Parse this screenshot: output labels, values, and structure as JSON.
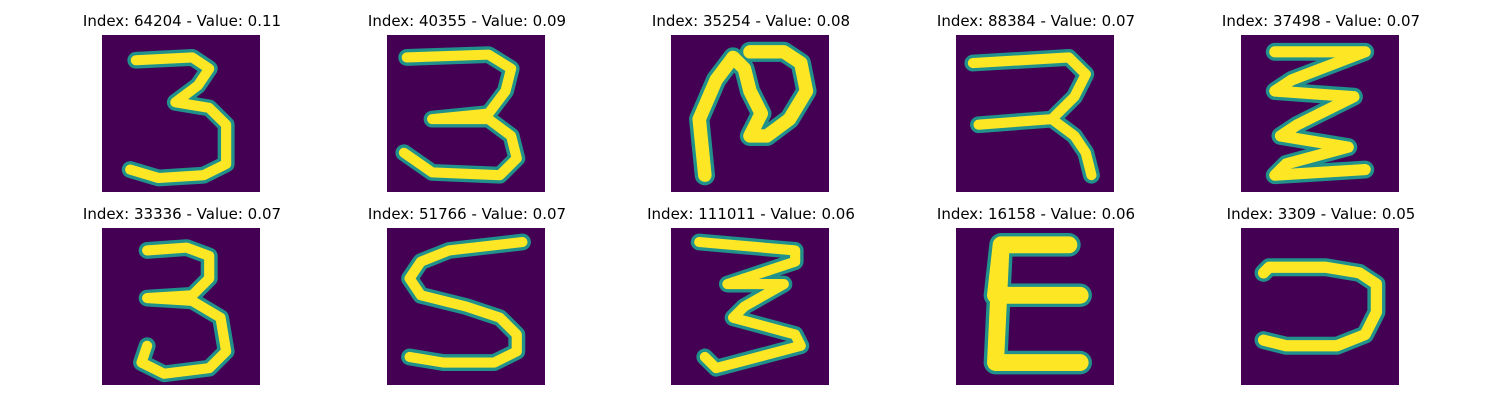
{
  "colors": {
    "background": "#440154",
    "stroke_core": "#fde725",
    "stroke_edge": "#21918c",
    "stroke_mid": "#5ec962"
  },
  "panels": [
    {
      "title": "Index: 64204 - Value: 0.11",
      "digit_icon": "digit-3-icon"
    },
    {
      "title": "Index: 40355 - Value: 0.09",
      "digit_icon": "digit-3-icon"
    },
    {
      "title": "Index: 35254 - Value: 0.08",
      "digit_icon": "digit-N-like-icon"
    },
    {
      "title": "Index: 88384 - Value: 0.07",
      "digit_icon": "digit-reversed-R-icon"
    },
    {
      "title": "Index: 37498 - Value: 0.07",
      "digit_icon": "digit-zigzag-3-icon"
    },
    {
      "title": "Index: 33336 - Value: 0.07",
      "digit_icon": "digit-3-icon"
    },
    {
      "title": "Index: 51766 - Value: 0.07",
      "digit_icon": "digit-5-icon"
    },
    {
      "title": "Index: 111011 - Value: 0.06",
      "digit_icon": "digit-3-icon"
    },
    {
      "title": "Index: 16158 - Value: 0.06",
      "digit_icon": "digit-E-icon"
    },
    {
      "title": "Index: 3309 - Value: 0.05",
      "digit_icon": "digit-reversed-C-icon"
    }
  ]
}
